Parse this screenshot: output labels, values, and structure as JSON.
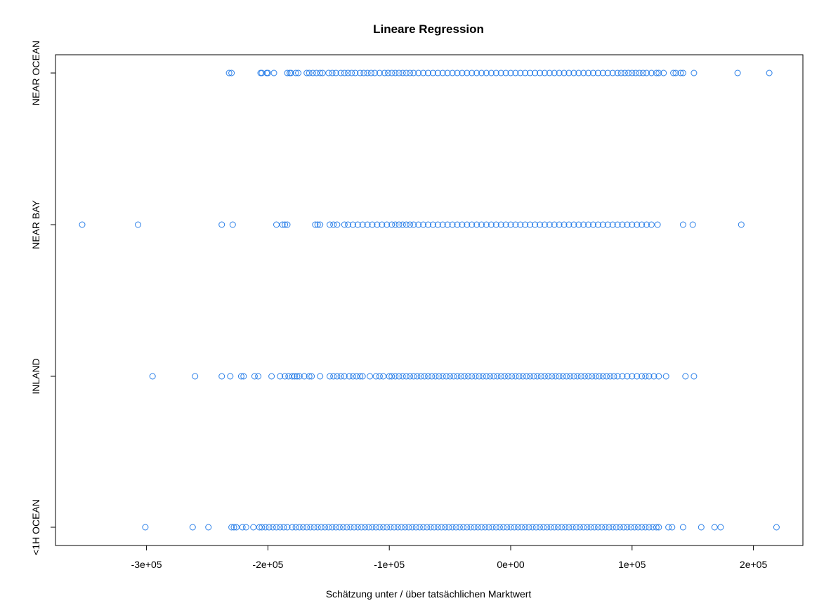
{
  "chart_data": {
    "type": "scatter",
    "title": "Lineare Regression",
    "xlabel": "Schätzung unter / über tatsächlichen Marktwert",
    "ylabel": "",
    "xlim": [
      -370000,
      240000
    ],
    "x_ticks": [
      -300000,
      -200000,
      -100000,
      0,
      100000,
      200000
    ],
    "x_tick_labels": [
      "-3e+05",
      "-2e+05",
      "-1e+05",
      "0e+00",
      "1e+05",
      "2e+05"
    ],
    "categories": [
      "<1H OCEAN",
      "INLAND",
      "NEAR BAY",
      "NEAR OCEAN"
    ],
    "grid": false,
    "point_color": "#2a7fe8",
    "series": [
      {
        "category": "NEAR OCEAN",
        "x": [
          -232000,
          -230000,
          -206000,
          -205000,
          -201000,
          -200000,
          -195000,
          -184000,
          -182000,
          -181000,
          -177000,
          -175000,
          -168000,
          -166000,
          -163000,
          -160000,
          -157000,
          -155000,
          -150000,
          -147000,
          -144000,
          -140000,
          -137000,
          -134000,
          -131000,
          -128000,
          -124000,
          -121000,
          -118000,
          -115000,
          -112000,
          -108000,
          -104000,
          -101000,
          -98000,
          -95000,
          -92000,
          -89000,
          -86000,
          -83000,
          -80000,
          -76000,
          -72000,
          -68000,
          -64000,
          -60000,
          -56000,
          -52000,
          -48000,
          -44000,
          -40000,
          -36000,
          -32000,
          -28000,
          -24000,
          -20000,
          -16000,
          -12000,
          -8000,
          -4000,
          0,
          4000,
          8000,
          12000,
          16000,
          20000,
          24000,
          28000,
          32000,
          36000,
          40000,
          44000,
          48000,
          52000,
          56000,
          60000,
          64000,
          68000,
          72000,
          76000,
          80000,
          84000,
          88000,
          91000,
          94000,
          97000,
          100000,
          103000,
          106000,
          109000,
          112000,
          116000,
          120000,
          122000,
          126000,
          134000,
          136000,
          140000,
          142000,
          151000,
          187000,
          213000
        ]
      },
      {
        "category": "NEAR BAY",
        "x": [
          -353000,
          -307000,
          -238000,
          -229000,
          -193000,
          -188000,
          -186000,
          -184000,
          -161000,
          -159000,
          -157000,
          -149000,
          -146000,
          -143000,
          -137000,
          -134000,
          -130000,
          -126000,
          -122000,
          -118000,
          -114000,
          -110000,
          -106000,
          -102000,
          -98000,
          -95000,
          -92000,
          -89000,
          -86000,
          -83000,
          -80000,
          -76000,
          -72000,
          -68000,
          -64000,
          -60000,
          -56000,
          -52000,
          -48000,
          -44000,
          -40000,
          -36000,
          -32000,
          -28000,
          -24000,
          -20000,
          -16000,
          -12000,
          -8000,
          -4000,
          0,
          4000,
          8000,
          12000,
          16000,
          20000,
          24000,
          28000,
          32000,
          36000,
          40000,
          44000,
          48000,
          52000,
          56000,
          60000,
          64000,
          68000,
          72000,
          76000,
          80000,
          84000,
          88000,
          92000,
          96000,
          100000,
          104000,
          108000,
          112000,
          116000,
          121000,
          142000,
          150000,
          190000
        ]
      },
      {
        "category": "INLAND",
        "x": [
          -295000,
          -260000,
          -238000,
          -231000,
          -222000,
          -220000,
          -211000,
          -208000,
          -197000,
          -190000,
          -186000,
          -183000,
          -180000,
          -178000,
          -176000,
          -174000,
          -170000,
          -166000,
          -164000,
          -157000,
          -149000,
          -146000,
          -143000,
          -140000,
          -137000,
          -133000,
          -130000,
          -127000,
          -124000,
          -122000,
          -116000,
          -111000,
          -108000,
          -105000,
          -100000,
          -98000,
          -95000,
          -92000,
          -89000,
          -86000,
          -83000,
          -80000,
          -77000,
          -74000,
          -71000,
          -68000,
          -65000,
          -62000,
          -59000,
          -56000,
          -53000,
          -50000,
          -47000,
          -44000,
          -41000,
          -38000,
          -35000,
          -32000,
          -29000,
          -26000,
          -23000,
          -20000,
          -17000,
          -14000,
          -11000,
          -8000,
          -5000,
          -2000,
          1000,
          4000,
          7000,
          10000,
          13000,
          16000,
          19000,
          22000,
          25000,
          28000,
          31000,
          34000,
          37000,
          40000,
          43000,
          46000,
          49000,
          52000,
          55000,
          58000,
          61000,
          64000,
          67000,
          70000,
          73000,
          76000,
          79000,
          82000,
          85000,
          88000,
          92000,
          96000,
          100000,
          104000,
          108000,
          111000,
          114000,
          118000,
          122000,
          128000,
          144000,
          151000
        ]
      },
      {
        "category": "<1H OCEAN",
        "x": [
          -301000,
          -262000,
          -249000,
          -230000,
          -228000,
          -226000,
          -221000,
          -218000,
          -212000,
          -207000,
          -205000,
          -202000,
          -199000,
          -196000,
          -193000,
          -190000,
          -187000,
          -184000,
          -180000,
          -177000,
          -174000,
          -171000,
          -168000,
          -165000,
          -162000,
          -159000,
          -156000,
          -153000,
          -150000,
          -147000,
          -144000,
          -141000,
          -138000,
          -135000,
          -132000,
          -129000,
          -126000,
          -123000,
          -120000,
          -117000,
          -114000,
          -111000,
          -108000,
          -105000,
          -102000,
          -99000,
          -96000,
          -93000,
          -90000,
          -87000,
          -84000,
          -81000,
          -78000,
          -75000,
          -72000,
          -69000,
          -66000,
          -63000,
          -60000,
          -57000,
          -54000,
          -51000,
          -48000,
          -45000,
          -42000,
          -39000,
          -36000,
          -33000,
          -30000,
          -27000,
          -24000,
          -21000,
          -18000,
          -15000,
          -12000,
          -9000,
          -6000,
          -3000,
          0,
          3000,
          6000,
          9000,
          12000,
          15000,
          18000,
          21000,
          24000,
          27000,
          30000,
          33000,
          36000,
          39000,
          42000,
          45000,
          48000,
          51000,
          54000,
          57000,
          60000,
          63000,
          66000,
          69000,
          72000,
          75000,
          78000,
          81000,
          84000,
          87000,
          90000,
          93000,
          96000,
          99000,
          102000,
          105000,
          108000,
          111000,
          114000,
          117000,
          120000,
          122000,
          130000,
          133000,
          142000,
          157000,
          168000,
          173000,
          219000
        ]
      }
    ]
  }
}
